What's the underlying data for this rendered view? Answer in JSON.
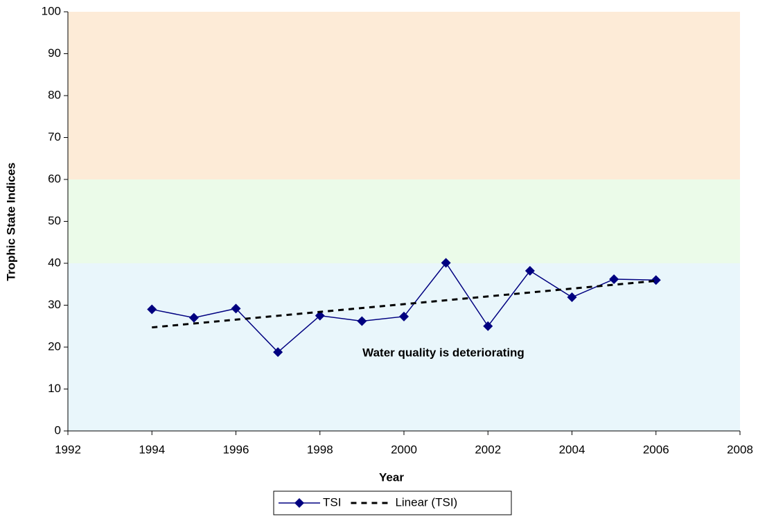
{
  "chart_data": {
    "type": "line",
    "x_label": "Year",
    "y_label": "Trophic State Indices",
    "annotation": "Water quality is deteriorating",
    "xlim": [
      1992,
      2008
    ],
    "xticks": [
      1992,
      1994,
      1996,
      1998,
      2000,
      2002,
      2004,
      2006,
      2008
    ],
    "ylim": [
      0,
      100
    ],
    "yticks": [
      0,
      10,
      20,
      30,
      40,
      50,
      60,
      70,
      80,
      90,
      100
    ],
    "grid": false,
    "legend": "bottom",
    "bands": [
      {
        "from": 0,
        "to": 40,
        "color": "#e9f6fb"
      },
      {
        "from": 40,
        "to": 60,
        "color": "#ebfbe9"
      },
      {
        "from": 60,
        "to": 100,
        "color": "#fdebd7"
      }
    ],
    "series": [
      {
        "name": "TSI",
        "color": "#000080",
        "marker": "diamond",
        "x": [
          1994,
          1995,
          1996,
          1997,
          1998,
          1999,
          2000,
          2001,
          2002,
          2003,
          2004,
          2005,
          2006
        ],
        "values": [
          29,
          27,
          29.2,
          18.8,
          27.5,
          26.2,
          27.3,
          40.1,
          25,
          38.2,
          31.9,
          36.2,
          36
        ]
      },
      {
        "name": "Linear (TSI)",
        "color": "#000000",
        "dashed": true,
        "x": [
          1994,
          2006
        ],
        "values": [
          24.7,
          35.8
        ]
      }
    ]
  }
}
